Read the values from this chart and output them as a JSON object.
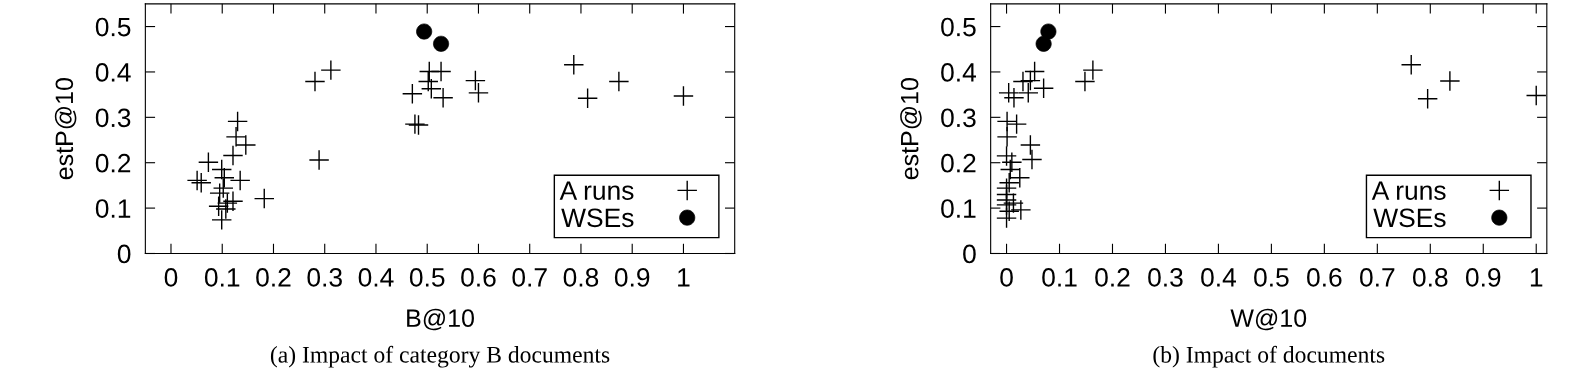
{
  "chart_data": [
    {
      "type": "scatter",
      "xlabel": "B@10",
      "ylabel": "estP@10",
      "annotations": [
        "(a) Impact of category B documents"
      ],
      "xlim": [
        -0.05,
        1.1
      ],
      "ylim": [
        0,
        0.55
      ],
      "xticks": [
        0,
        0.1,
        0.2,
        0.3,
        0.4,
        0.5,
        0.6,
        0.7,
        0.8,
        0.9,
        1
      ],
      "yticks": [
        0,
        0.1,
        0.2,
        0.3,
        0.4,
        0.5
      ],
      "legend": "bottom right",
      "grid": false,
      "series": [
        {
          "name": "A runs",
          "color": "#000000",
          "marker": "cross",
          "x": [
            0.281,
            0.312,
            0.289,
            0.182,
            0.13,
            0.127,
            0.146,
            0.121,
            0.073,
            0.099,
            0.104,
            0.051,
            0.059,
            0.135,
            0.102,
            0.095,
            0.121,
            0.093,
            0.107,
            0.099,
            0.11,
            0.471,
            0.504,
            0.527,
            0.502,
            0.508,
            0.531,
            0.476,
            0.483,
            0.594,
            0.6,
            0.786,
            0.813,
            0.874,
            1.0
          ],
          "values": [
            0.379,
            0.404,
            0.206,
            0.121,
            0.291,
            0.257,
            0.239,
            0.216,
            0.201,
            0.185,
            0.167,
            0.161,
            0.156,
            0.161,
            0.144,
            0.133,
            0.115,
            0.104,
            0.098,
            0.074,
            0.111,
            0.352,
            0.401,
            0.401,
            0.379,
            0.363,
            0.343,
            0.285,
            0.283,
            0.381,
            0.354,
            0.416,
            0.342,
            0.379,
            0.347
          ]
        },
        {
          "name": "WSEs",
          "color": "#000000",
          "marker": "circle",
          "x": [
            0.494,
            0.527
          ],
          "values": [
            0.489,
            0.462
          ]
        }
      ]
    },
    {
      "type": "scatter",
      "xlabel": "W@10",
      "ylabel": "estP@10",
      "annotations": [
        "(b) Impact of documents"
      ],
      "xlim": [
        -0.03,
        1.02
      ],
      "ylim": [
        0,
        0.55
      ],
      "xticks": [
        0,
        0.1,
        0.2,
        0.3,
        0.4,
        0.5,
        0.6,
        0.7,
        0.8,
        0.9,
        1
      ],
      "yticks": [
        0,
        0.1,
        0.2,
        0.3,
        0.4,
        0.5
      ],
      "legend": "bottom right",
      "grid": false,
      "series": [
        {
          "name": "A runs",
          "color": "#000000",
          "marker": "cross",
          "x": [
            0.053,
            0.031,
            0.045,
            0.07,
            0.041,
            0.004,
            0.014,
            0.148,
            0.163,
            0.001,
            0.019,
            0.001,
            0.045,
            0.048,
            0.0,
            0.01,
            0.007,
            0.025,
            0.005,
            0.0,
            0.0,
            0.0,
            0.013,
            0.027,
            0.0,
            0.0,
            0.005,
            0.764,
            0.795,
            0.837,
            1.0
          ],
          "values": [
            0.401,
            0.379,
            0.381,
            0.364,
            0.354,
            0.354,
            0.343,
            0.379,
            0.404,
            0.291,
            0.285,
            0.257,
            0.239,
            0.207,
            0.215,
            0.201,
            0.185,
            0.167,
            0.156,
            0.144,
            0.13,
            0.118,
            0.111,
            0.096,
            0.107,
            0.078,
            0.093,
            0.416,
            0.341,
            0.38,
            0.348
          ]
        },
        {
          "name": "WSEs",
          "color": "#000000",
          "marker": "circle",
          "x": [
            0.079,
            0.07
          ],
          "values": [
            0.489,
            0.462
          ]
        }
      ]
    }
  ]
}
